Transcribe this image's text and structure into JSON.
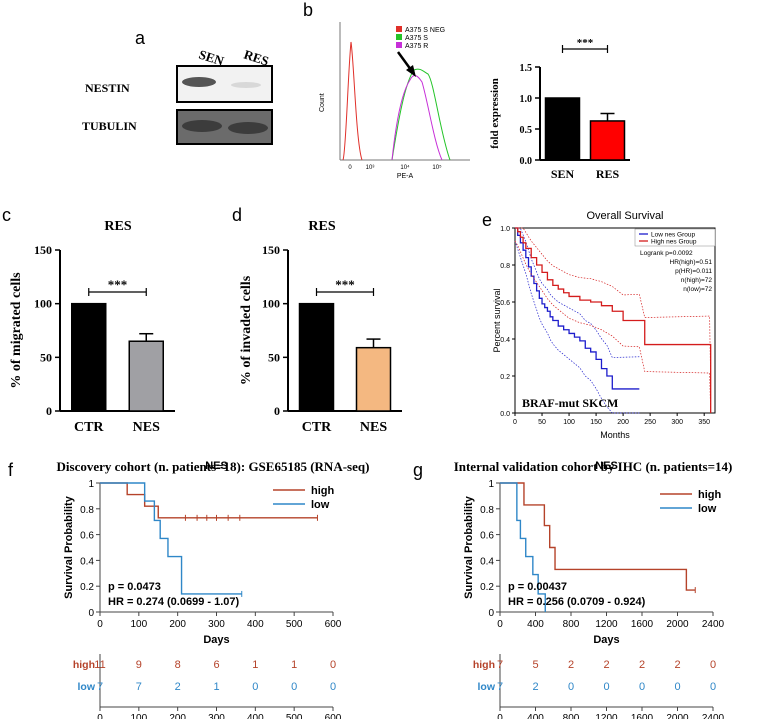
{
  "figure": {
    "panel_labels": {
      "a": "a",
      "b": "b",
      "c": "c",
      "d": "d",
      "e": "e",
      "f": "f",
      "g": "g"
    }
  },
  "colors": {
    "black": "#000000",
    "red": "#ff0000",
    "grey": "#a0a0a4",
    "orange": "#f4b881",
    "km_high": "#b5432a",
    "km_low": "#2f87c8",
    "flow_neg": "#e0302a",
    "flow_s": "#24c428",
    "flow_r": "#c72fd8",
    "surv_low": "#1d1dcc",
    "surv_high": "#d41c1c"
  },
  "panel_a": {
    "columns": [
      "SEN",
      "RES"
    ],
    "rows": [
      "NESTIN",
      "TUBULIN"
    ]
  },
  "panel_b_flow": {
    "legend": [
      "A375 S NEG",
      "A375 S",
      "A375 R"
    ],
    "ylabel": "Count",
    "xlabel": "PE-A",
    "xticks": [
      "0",
      "10³",
      "10⁴",
      "10⁵"
    ]
  },
  "chart_data": [
    {
      "id": "b-bar",
      "type": "bar",
      "title": "",
      "xlabel": "",
      "ylabel": "fold expression",
      "categories": [
        "SEN",
        "RES"
      ],
      "values": [
        1.0,
        0.63
      ],
      "errors": [
        0,
        0.12
      ],
      "ylim": [
        0,
        1.5
      ],
      "yticks": [
        "0.0",
        "0.5",
        "1.0",
        "1.5"
      ],
      "significance": "***"
    },
    {
      "id": "c-bar",
      "type": "bar",
      "title": "RES",
      "xlabel": "",
      "ylabel": "% of migrated cells",
      "categories": [
        "CTR",
        "NES"
      ],
      "values": [
        100,
        65
      ],
      "errors": [
        0,
        7
      ],
      "ylim": [
        0,
        150
      ],
      "yticks": [
        "0",
        "50",
        "100",
        "150"
      ],
      "significance": "***"
    },
    {
      "id": "d-bar",
      "type": "bar",
      "title": "RES",
      "xlabel": "",
      "ylabel": "% of invaded cells",
      "categories": [
        "CTR",
        "NES"
      ],
      "values": [
        100,
        59
      ],
      "errors": [
        0,
        8
      ],
      "ylim": [
        0,
        150
      ],
      "yticks": [
        "0",
        "50",
        "100",
        "150"
      ],
      "significance": "***"
    },
    {
      "id": "e-km",
      "type": "line",
      "title": "Overall Survival",
      "xlabel": "Months",
      "ylabel": "Percent survival",
      "xlim": [
        0,
        370
      ],
      "ylim": [
        0,
        1
      ],
      "xticks": [
        "0",
        "50",
        "100",
        "150",
        "200",
        "250",
        "300",
        "350"
      ],
      "yticks": [
        "0.0",
        "0.2",
        "0.4",
        "0.6",
        "0.8",
        "1.0"
      ],
      "legend": [
        "Low nes Group",
        "High nes Group"
      ],
      "stats": [
        "Logrank p=0.0092",
        "HR(high)=0.51",
        "p(HR)=0.011",
        "n(high)=72",
        "n(low)=72"
      ],
      "annotation": "BRAF-mut SKCM",
      "series": [
        {
          "name": "Low nes Group",
          "x": [
            0,
            5,
            10,
            15,
            20,
            25,
            30,
            35,
            40,
            45,
            50,
            55,
            60,
            65,
            70,
            80,
            90,
            100,
            110,
            120,
            130,
            140,
            150,
            160,
            170,
            180,
            230
          ],
          "y": [
            1.0,
            0.96,
            0.92,
            0.88,
            0.84,
            0.79,
            0.74,
            0.7,
            0.66,
            0.62,
            0.59,
            0.57,
            0.55,
            0.52,
            0.5,
            0.47,
            0.45,
            0.43,
            0.41,
            0.39,
            0.35,
            0.33,
            0.29,
            0.24,
            0.2,
            0.13,
            0.13
          ]
        },
        {
          "name": "High nes Group",
          "x": [
            0,
            5,
            10,
            15,
            20,
            30,
            40,
            50,
            60,
            70,
            80,
            90,
            100,
            120,
            140,
            160,
            180,
            200,
            230,
            240,
            300,
            360,
            362
          ],
          "y": [
            1.0,
            0.98,
            0.95,
            0.92,
            0.89,
            0.84,
            0.8,
            0.76,
            0.72,
            0.69,
            0.67,
            0.65,
            0.63,
            0.61,
            0.6,
            0.58,
            0.55,
            0.5,
            0.5,
            0.37,
            0.37,
            0.37,
            0.0
          ]
        }
      ]
    },
    {
      "id": "f-km",
      "type": "line",
      "title": "Discovery cohort (n. patients=18): GSE65185 (RNA-seq)",
      "subtitle": "NES",
      "xlabel": "Days",
      "ylabel": "Survival Probability",
      "xlim": [
        0,
        600
      ],
      "ylim": [
        0,
        1
      ],
      "xticks": [
        "0",
        "100",
        "200",
        "300",
        "400",
        "500",
        "600"
      ],
      "yticks": [
        "0",
        "0.2",
        "0.4",
        "0.6",
        "0.8",
        "1"
      ],
      "legend": [
        "high",
        "low"
      ],
      "stats": [
        "p = 0.0473",
        "HR = 0.274 (0.0699 - 1.07)"
      ],
      "series": [
        {
          "name": "high",
          "x": [
            0,
            70,
            115,
            150,
            560
          ],
          "y": [
            1,
            0.91,
            0.82,
            0.73,
            0.73
          ]
        },
        {
          "name": "low",
          "x": [
            0,
            115,
            140,
            155,
            175,
            210,
            365
          ],
          "y": [
            1,
            0.86,
            0.71,
            0.57,
            0.43,
            0.14,
            0.14
          ]
        }
      ],
      "risk_table": {
        "times": [
          "0",
          "100",
          "200",
          "300",
          "400",
          "500",
          "600"
        ],
        "rows": [
          {
            "label": "high",
            "values": [
              "11",
              "9",
              "8",
              "6",
              "1",
              "1",
              "0"
            ]
          },
          {
            "label": "low",
            "values": [
              "7",
              "7",
              "2",
              "1",
              "0",
              "0",
              "0"
            ]
          }
        ]
      }
    },
    {
      "id": "g-km",
      "type": "line",
      "title": "Internal validation cohort by IHC (n. patients=14)",
      "subtitle": "NES",
      "xlabel": "Days",
      "ylabel": "Survival Probability",
      "xlim": [
        0,
        2400
      ],
      "ylim": [
        0,
        1
      ],
      "xticks": [
        "0",
        "400",
        "800",
        "1200",
        "1600",
        "2000",
        "2400"
      ],
      "yticks": [
        "0",
        "0.2",
        "0.4",
        "0.6",
        "0.8",
        "1"
      ],
      "legend": [
        "high",
        "low"
      ],
      "stats": [
        "p = 0.00437",
        "HR = 0.256 (0.0709 - 0.924)"
      ],
      "series": [
        {
          "name": "high",
          "x": [
            0,
            270,
            500,
            560,
            620,
            2100,
            2200
          ],
          "y": [
            1,
            0.83,
            0.67,
            0.5,
            0.33,
            0.17,
            0.17
          ]
        },
        {
          "name": "low",
          "x": [
            0,
            190,
            230,
            290,
            370,
            430,
            510
          ],
          "y": [
            1,
            0.71,
            0.57,
            0.43,
            0.29,
            0.14,
            0.0
          ]
        }
      ],
      "risk_table": {
        "times": [
          "0",
          "400",
          "800",
          "1200",
          "1600",
          "2000",
          "2400"
        ],
        "rows": [
          {
            "label": "high",
            "values": [
              "7",
              "5",
              "2",
              "2",
              "2",
              "2",
              "0"
            ]
          },
          {
            "label": "low",
            "values": [
              "7",
              "2",
              "0",
              "0",
              "0",
              "0",
              "0"
            ]
          }
        ]
      }
    }
  ]
}
